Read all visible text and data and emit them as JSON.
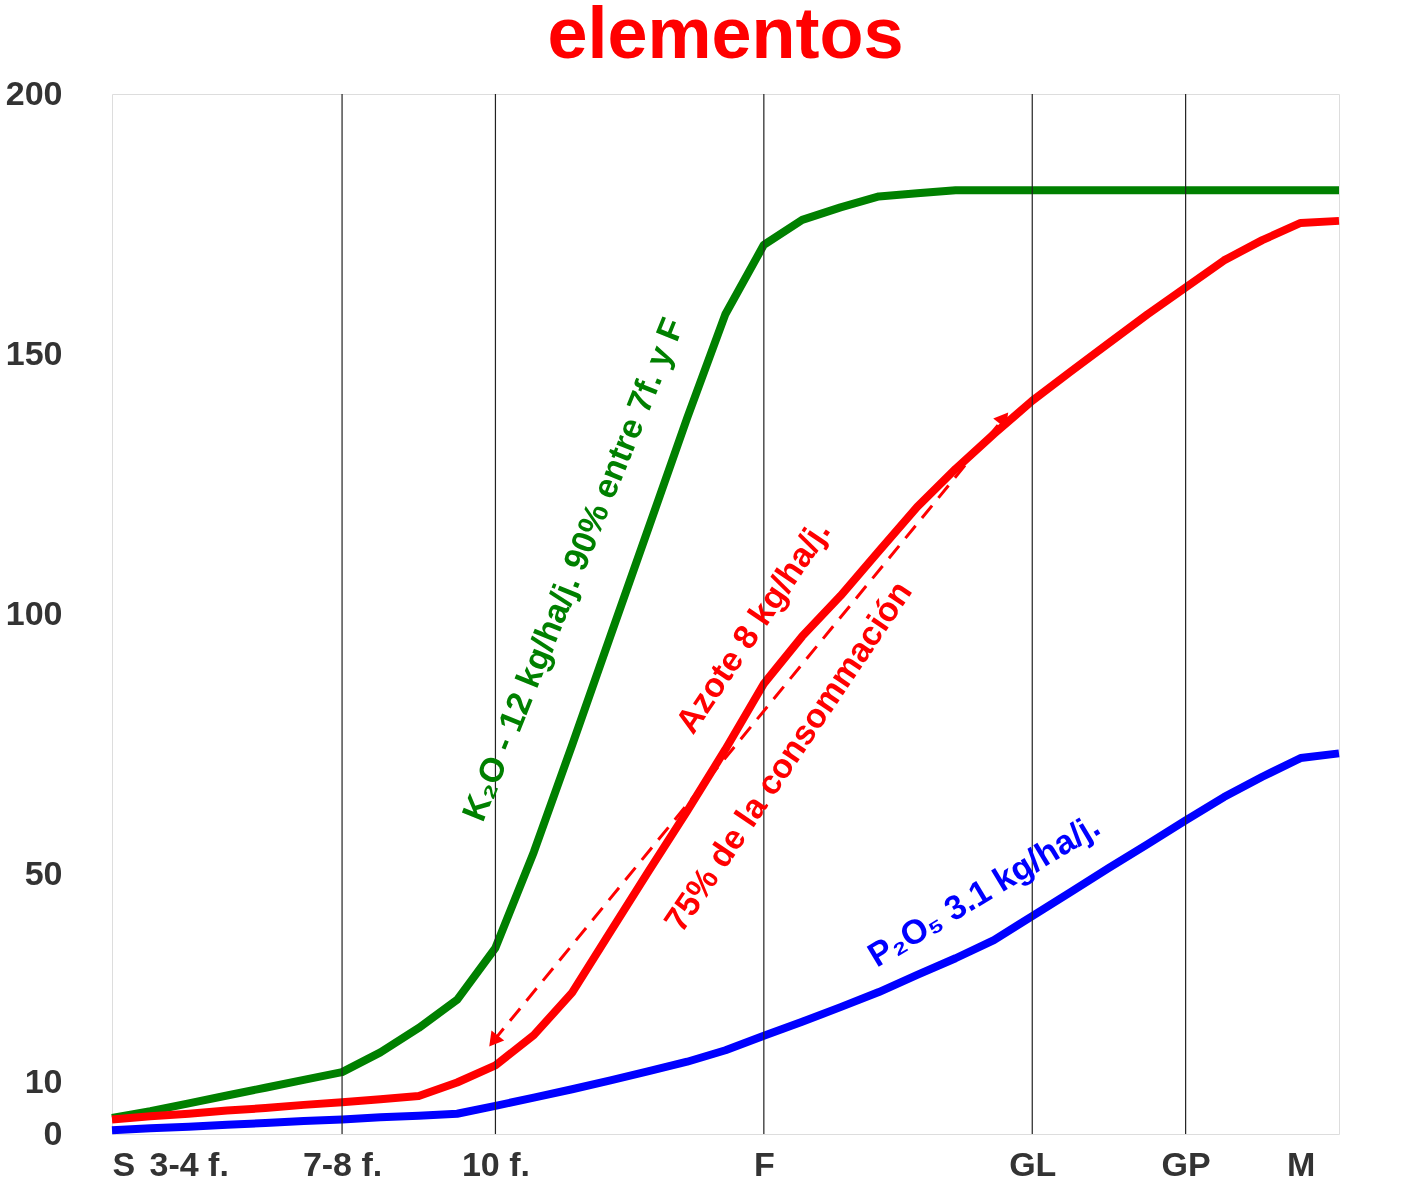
{
  "chart_data": {
    "type": "line",
    "title": "elementos",
    "categories": [
      "S",
      null,
      "3-4 f.",
      null,
      null,
      null,
      "7-8 f.",
      null,
      null,
      null,
      "10 f.",
      null,
      null,
      null,
      null,
      null,
      null,
      "F",
      null,
      null,
      null,
      null,
      null,
      null,
      "GL",
      null,
      null,
      null,
      "GP",
      null,
      null,
      "M",
      null
    ],
    "ylim": [
      0,
      200
    ],
    "yticks": [
      0,
      10,
      50,
      100,
      150,
      200
    ],
    "grid": false,
    "legend": false,
    "marker": "none",
    "line_style": "solid",
    "ref_lines": [
      {
        "axis": "x",
        "value": "7-8 f.",
        "label": null
      },
      {
        "axis": "x",
        "value": "10 f.",
        "label": null
      },
      {
        "axis": "x",
        "value": "F",
        "label": null
      },
      {
        "axis": "x",
        "value": "GL",
        "label": null
      },
      {
        "axis": "x",
        "value": "GP",
        "label": null
      }
    ],
    "series": [
      {
        "color": "#008000",
        "values": [
          3.1,
          4.4,
          5.9,
          7.4,
          8.9,
          10.4,
          11.9,
          15.7,
          20.4,
          25.8,
          35.8,
          54.2,
          74.8,
          95.8,
          116.7,
          137.7,
          157.7,
          171.0,
          175.8,
          178.2,
          180.3,
          180.9,
          181.5,
          181.5,
          181.5,
          181.5,
          181.5,
          181.5,
          181.5,
          181.5,
          181.5,
          181.5,
          181.5
        ]
      },
      {
        "color": "#ff0000",
        "values": [
          2.8,
          3.4,
          3.9,
          4.5,
          5.0,
          5.6,
          6.1,
          6.7,
          7.3,
          9.9,
          13.2,
          19.0,
          27.2,
          38.9,
          50.6,
          62.1,
          74.0,
          86.6,
          95.7,
          103.5,
          112.1,
          120.6,
          127.9,
          134.6,
          141.0,
          146.6,
          152.1,
          157.6,
          162.8,
          168.0,
          171.9,
          175.2,
          175.6
        ]
      },
      {
        "color": "#0000ff",
        "values": [
          0.7,
          1.1,
          1.4,
          1.8,
          2.1,
          2.5,
          2.8,
          3.2,
          3.5,
          3.9,
          5.4,
          7.0,
          8.6,
          10.3,
          12.1,
          13.9,
          16.1,
          18.9,
          21.6,
          24.4,
          27.3,
          30.6,
          33.8,
          37.3,
          41.9,
          46.5,
          51.2,
          55.7,
          60.3,
          64.8,
          68.7,
          72.3,
          73.2
        ]
      }
    ],
    "annotations": [
      "K₂O - 12 kg/ha/j. 90% entre 7f. y F",
      "Azote 8 kg/ha/j.",
      "75% de la consommación",
      "P₂O₅ 3.1 kg/ha/j."
    ]
  }
}
